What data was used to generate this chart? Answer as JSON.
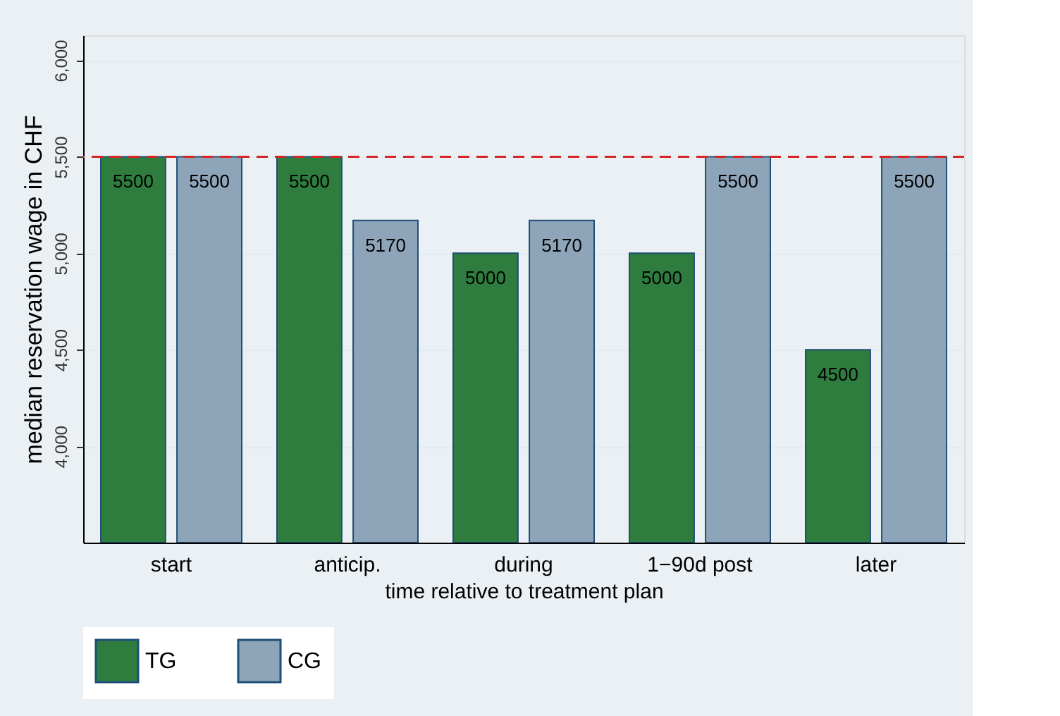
{
  "chart_data": {
    "type": "bar",
    "xlabel": "time relative to treatment plan",
    "ylabel": "median reservation wage in CHF",
    "categories": [
      "start",
      "anticip.",
      "during",
      "1−90d post",
      "later"
    ],
    "series": [
      {
        "name": "TG",
        "color": "#2e7d3e",
        "values": [
          5500,
          5500,
          5000,
          5000,
          4500
        ]
      },
      {
        "name": "CG",
        "color": "#8ea4b8",
        "values": [
          5500,
          5170,
          5170,
          5500,
          5500
        ]
      }
    ],
    "ylim": [
      3500,
      6130
    ],
    "yticks": [
      {
        "value": 4000,
        "label": "4,000"
      },
      {
        "value": 4500,
        "label": "4,500"
      },
      {
        "value": 5000,
        "label": "5,000"
      },
      {
        "value": 5500,
        "label": "5,500"
      },
      {
        "value": 6000,
        "label": "6,000"
      }
    ],
    "ref_lines": [
      {
        "axis": "y",
        "value": 5500,
        "color": "#d62728",
        "line_style": "dashed"
      }
    ],
    "grid": "y",
    "legend": "bottom",
    "data_labels": true
  }
}
